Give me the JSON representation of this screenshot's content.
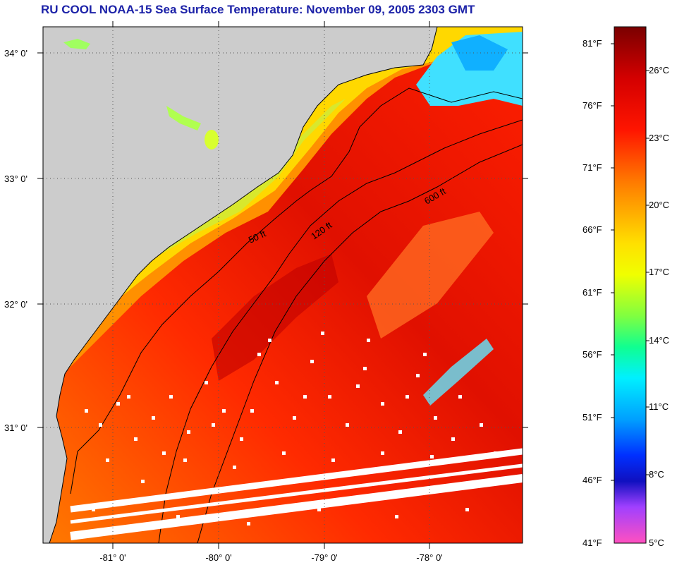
{
  "header": {
    "title": "RU COOL  NOAA-15  Sea Surface Temperature:  November 09, 2005 2303 GMT"
  },
  "map": {
    "lat_labels": [
      "34° 0'",
      "33° 0'",
      "32° 0'",
      "31° 0'"
    ],
    "lon_labels": [
      "-81° 0'",
      "-80° 0'",
      "-79° 0'",
      "-78° 0'"
    ],
    "contour_labels": [
      "50 ft",
      "120 ft",
      "600 ft"
    ],
    "colors": {
      "land": "#cccccc",
      "water_warm": "#ff3000",
      "water_hot": "#cc0000",
      "water_mid": "#ff8000",
      "water_cool": "#ffee00",
      "water_cold": "#00d0ff",
      "cloud": "#ffffff",
      "contour": "#000000",
      "grid": "#555555"
    }
  },
  "colorbar": {
    "fahrenheit": [
      "81°F",
      "76°F",
      "71°F",
      "66°F",
      "61°F",
      "56°F",
      "51°F",
      "46°F",
      "41°F"
    ],
    "celsius": [
      "26°C",
      "23°C",
      "20°C",
      "17°C",
      "14°C",
      "11°C",
      "8°C",
      "5°C"
    ]
  }
}
